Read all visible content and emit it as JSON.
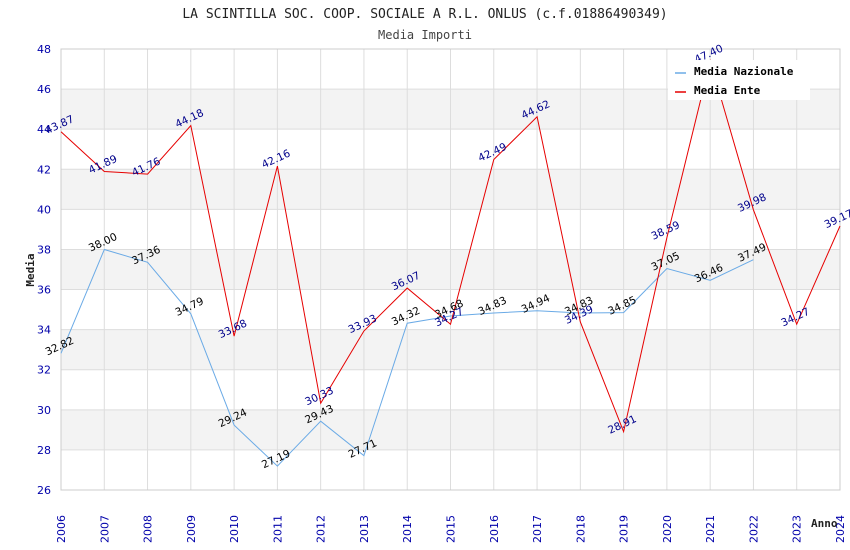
{
  "chart_data": {
    "type": "line",
    "title": "LA SCINTILLA SOC. COOP. SOCIALE A R.L. ONLUS (c.f.01886490349)",
    "subtitle": "Media Importi",
    "xlabel": "Anno",
    "ylabel": "Media",
    "ylim": [
      26,
      48
    ],
    "yticks": [
      26,
      28,
      30,
      32,
      34,
      36,
      38,
      40,
      42,
      44,
      46,
      48
    ],
    "x": [
      "2006",
      "2007",
      "2008",
      "2009",
      "2010",
      "2011",
      "2012",
      "2013",
      "2014",
      "2015",
      "2016",
      "2017",
      "2018",
      "2019",
      "2020",
      "2021",
      "2022",
      "2023",
      "2024"
    ],
    "grid": true,
    "legend_position": "top-right",
    "series": [
      {
        "name": "Media Nazionale",
        "color": "#6aaae6",
        "values": [
          32.82,
          38.0,
          37.36,
          34.79,
          29.24,
          27.19,
          29.43,
          27.71,
          34.32,
          34.68,
          34.83,
          34.94,
          34.83,
          34.85,
          37.05,
          36.46,
          37.49,
          null,
          null
        ]
      },
      {
        "name": "Media Ente",
        "color": "#e60000",
        "values": [
          43.87,
          41.89,
          41.76,
          44.18,
          33.68,
          42.16,
          30.33,
          33.93,
          36.07,
          34.27,
          42.49,
          44.62,
          34.39,
          28.91,
          38.59,
          47.4,
          39.98,
          34.27,
          39.17
        ]
      }
    ]
  }
}
